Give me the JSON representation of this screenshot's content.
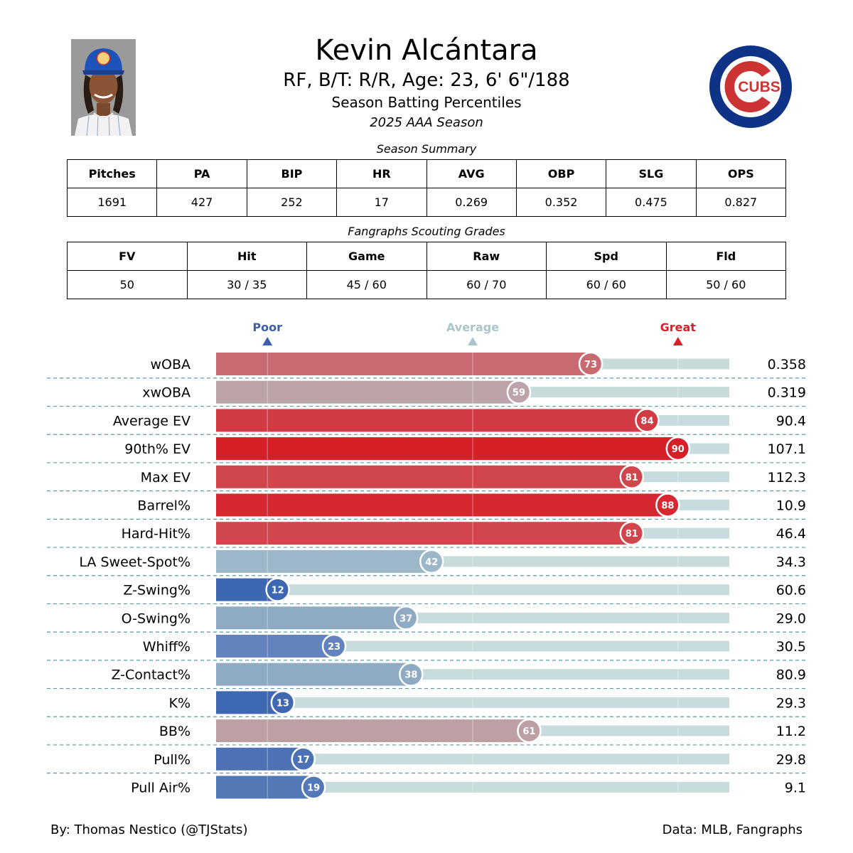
{
  "header": {
    "name": "Kevin Alcántara",
    "info": "RF, B/T: R/R, Age: 23, 6' 6\"/188",
    "subtitle": "Season Batting Percentiles",
    "season": "2025 AAA Season"
  },
  "logo": {
    "text": "CUBS",
    "blue": "#0E3386",
    "red": "#CC3433"
  },
  "season_summary": {
    "caption": "Season Summary",
    "headers": [
      "Pitches",
      "PA",
      "BIP",
      "HR",
      "AVG",
      "OBP",
      "SLG",
      "OPS"
    ],
    "values": [
      "1691",
      "427",
      "252",
      "17",
      "0.269",
      "0.352",
      "0.475",
      "0.827"
    ]
  },
  "scouting": {
    "caption": "Fangraphs Scouting Grades",
    "headers": [
      "FV",
      "Hit",
      "Game",
      "Raw",
      "Spd",
      "Fld"
    ],
    "values": [
      "50",
      "30 / 35",
      "45 / 60",
      "60 / 70",
      "60 / 60",
      "50 / 60"
    ]
  },
  "chart_data": {
    "type": "bar",
    "orientation": "horizontal",
    "xlim": [
      0,
      100
    ],
    "markers": [
      {
        "label": "Poor",
        "value": 10,
        "color": "#3B5FAA"
      },
      {
        "label": "Average",
        "value": 50,
        "color": "#A9C6CC"
      },
      {
        "label": "Great",
        "value": 90,
        "color": "#D7202A"
      }
    ],
    "categories": [
      "wOBA",
      "xwOBA",
      "Average EV",
      "90th% EV",
      "Max EV",
      "Barrel%",
      "Hard-Hit%",
      "LA Sweet-Spot%",
      "Z-Swing%",
      "O-Swing%",
      "Whiff%",
      "Z-Contact%",
      "K%",
      "BB%",
      "Pull%",
      "Pull Air%"
    ],
    "percentiles": [
      73,
      59,
      84,
      90,
      81,
      88,
      81,
      42,
      12,
      37,
      23,
      38,
      13,
      61,
      17,
      19
    ],
    "stat_values": [
      "0.358",
      "0.319",
      "90.4",
      "107.1",
      "112.3",
      "10.9",
      "46.4",
      "34.3",
      "60.6",
      "29.0",
      "30.5",
      "80.9",
      "29.3",
      "11.2",
      "29.8",
      "9.1"
    ],
    "colors": [
      "#C96A72",
      "#BCA4A8",
      "#D33B44",
      "#D71F28",
      "#D1454D",
      "#D72731",
      "#D1454D",
      "#9CB8C8",
      "#3D67B1",
      "#8EABC3",
      "#6283BD",
      "#8EABC3",
      "#3F68B2",
      "#BCA0A4",
      "#4C72B5",
      "#5378B6"
    ],
    "track_color": "#C8DCDE"
  },
  "footer": {
    "credit": "By: Thomas Nestico (@TJStats)",
    "source": "Data: MLB, Fangraphs"
  }
}
